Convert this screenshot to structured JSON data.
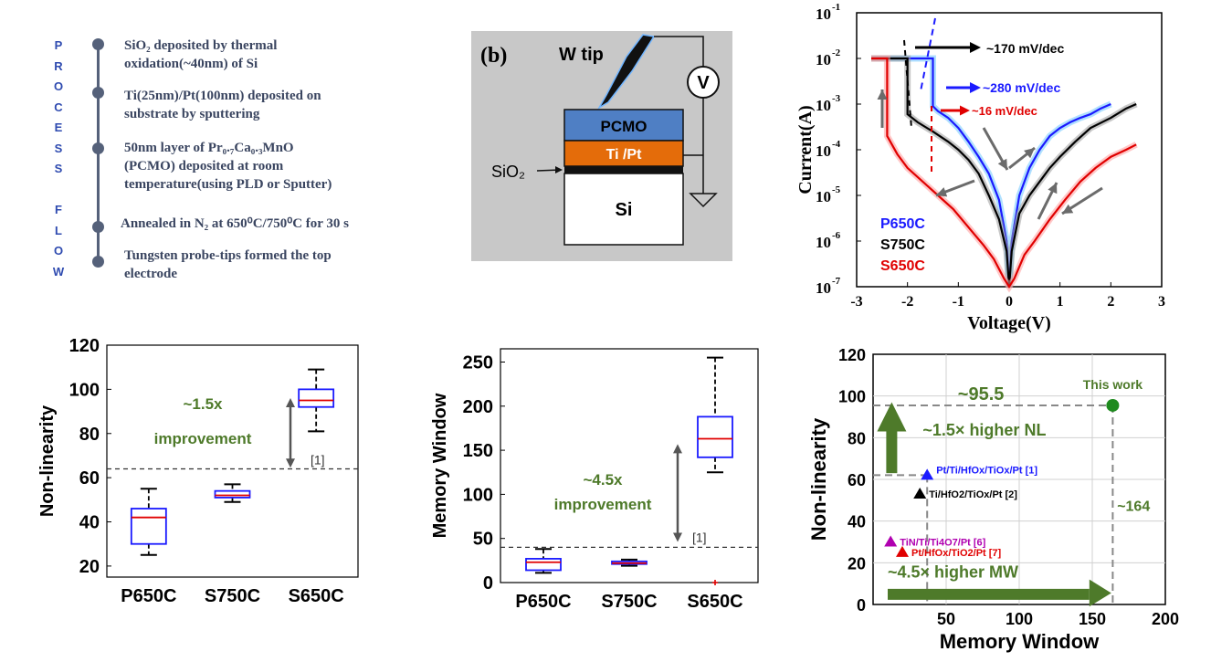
{
  "process_flow": {
    "label_letters": [
      "P",
      "R",
      "O",
      "C",
      "E",
      "S",
      "S",
      "",
      "F",
      "L",
      "O",
      "W"
    ],
    "steps": [
      {
        "lines": [
          "SiO₂ deposited by thermal",
          "oxidation(~40nm) of Si"
        ]
      },
      {
        "lines": [
          "Ti(25nm)/Pt(100nm) deposited on",
          "substrate by sputtering"
        ]
      },
      {
        "lines": [
          "50nm layer of Pr₀.₇Ca₀.₃MnO",
          "(PCMO) deposited at room",
          "temperature(using PLD or Sputter)"
        ]
      },
      {
        "lines": [
          "Annealed in N₂ at 650⁰C/750⁰C for 30 s"
        ]
      },
      {
        "lines": [
          "Tungsten probe-tips formed the top",
          "electrode"
        ]
      }
    ]
  },
  "device_schematic": {
    "panel_label": "(b)",
    "tip_label": "W tip",
    "meter_label": "V",
    "layers": [
      "PCMO",
      "Ti /Pt",
      "Si"
    ],
    "oxide_label": "SiO₂",
    "colors": {
      "background": "#c8c8c8",
      "pcmo": "#4f7fc4",
      "tipt": "#e46c0a",
      "oxide": "#111111",
      "si": "#ffffff"
    }
  },
  "chart_data": [
    {
      "id": "iv",
      "type": "line",
      "xlabel": "Voltage(V)",
      "ylabel": "Current(A)",
      "xlim": [
        -3,
        3
      ],
      "ylim_log10": [
        -7,
        -1
      ],
      "y_scale": "log",
      "x_ticks": [
        "-3",
        "-2",
        "-1",
        "0",
        "1",
        "2",
        "3"
      ],
      "y_ticks": [
        "10",
        "10",
        "10",
        "10",
        "10",
        "10",
        "10"
      ],
      "y_tick_exponents": [
        "-7",
        "-6",
        "-5",
        "-4",
        "-3",
        "-2",
        "-1"
      ],
      "series": [
        {
          "name": "P650C",
          "color": "#1a1aff",
          "x": [
            -1.5,
            -1.5,
            -1.4,
            -1.2,
            -1.0,
            -0.8,
            -0.6,
            -0.4,
            -0.2,
            -0.05,
            0,
            0.05,
            0.2,
            0.4,
            0.6,
            0.8,
            1.0,
            1.2,
            1.4,
            1.6,
            1.8,
            2.0
          ],
          "y": [
            0.01,
            0.0009,
            0.0007,
            0.0005,
            0.0003,
            0.00015,
            7e-05,
            3e-05,
            8e-06,
            1e-06,
            1e-07,
            1e-06,
            1e-05,
            4e-05,
            0.0001,
            0.0002,
            0.0003,
            0.0004,
            0.0005,
            0.0006,
            0.0008,
            0.001
          ]
        },
        {
          "name": "S750C",
          "color": "#000000",
          "x": [
            -2.0,
            -2.0,
            -1.8,
            -1.5,
            -1.2,
            -1.0,
            -0.8,
            -0.6,
            -0.4,
            -0.2,
            -0.05,
            0,
            0.05,
            0.2,
            0.4,
            0.6,
            0.8,
            1.0,
            1.3,
            1.6,
            2.0,
            2.3,
            2.5
          ],
          "y": [
            0.01,
            0.0006,
            0.0004,
            0.00025,
            0.00015,
            0.0001,
            6e-05,
            3e-05,
            1e-05,
            3e-06,
            6e-07,
            1e-07,
            6e-07,
            4e-06,
            1e-05,
            2e-05,
            4e-05,
            7e-05,
            0.00015,
            0.0003,
            0.0005,
            0.0008,
            0.001
          ]
        },
        {
          "name": "S650C",
          "color": "#e00000",
          "x": [
            -2.4,
            -2.4,
            -2.2,
            -2.0,
            -1.7,
            -1.4,
            -1.1,
            -0.8,
            -0.5,
            -0.3,
            -0.1,
            0,
            0.1,
            0.3,
            0.5,
            0.8,
            1.1,
            1.4,
            1.7,
            2.0,
            2.3,
            2.5
          ],
          "y": [
            0.01,
            0.0002,
            8e-05,
            4e-05,
            2e-05,
            1e-05,
            5e-06,
            2e-06,
            8e-07,
            4e-07,
            1.5e-07,
            1e-07,
            1.5e-07,
            5e-07,
            1e-06,
            3e-06,
            8e-06,
            2e-05,
            4e-05,
            7e-05,
            0.0001,
            0.00013
          ]
        }
      ],
      "legend": [
        "P650C",
        "S750C",
        "S650C"
      ],
      "legend_placement": "bottom-left",
      "annotations": [
        "~170 mV/dec",
        "~280 mV/dec",
        "~16 mV/dec"
      ]
    },
    {
      "id": "nl_box",
      "type": "box",
      "ylabel": "Non-linearity",
      "xlabel": "",
      "categories": [
        "P650C",
        "S750C",
        "S650C"
      ],
      "ylim": [
        15,
        120
      ],
      "y_ticks": [
        "20",
        "40",
        "60",
        "80",
        "100",
        "120"
      ],
      "boxes": [
        {
          "whisker_low": 25,
          "q1": 30,
          "median": 42,
          "q3": 46,
          "whisker_high": 55
        },
        {
          "whisker_low": 49,
          "q1": 51,
          "median": 52,
          "q3": 54,
          "whisker_high": 57
        },
        {
          "whisker_low": 81,
          "q1": 92,
          "median": 95,
          "q3": 100,
          "whisker_high": 109
        }
      ],
      "reference_line": 64,
      "reference_label": "[1]",
      "annotation_lines": [
        "~1.5x",
        "improvement"
      ]
    },
    {
      "id": "mw_box",
      "type": "box",
      "ylabel": "Memory Window",
      "xlabel": "",
      "categories": [
        "P650C",
        "S750C",
        "S650C"
      ],
      "ylim": [
        0,
        265
      ],
      "y_ticks": [
        "0",
        "50",
        "100",
        "150",
        "200",
        "250"
      ],
      "boxes": [
        {
          "whisker_low": 11,
          "q1": 14,
          "median": 23,
          "q3": 27,
          "whisker_high": 38
        },
        {
          "whisker_low": 19,
          "q1": 21,
          "median": 22,
          "q3": 24,
          "whisker_high": 26
        },
        {
          "whisker_low": 125,
          "q1": 142,
          "median": 163,
          "q3": 188,
          "whisker_high": 255
        }
      ],
      "outliers": [
        {
          "category": "S650C",
          "value": 0
        }
      ],
      "reference_line": 40,
      "reference_label": "[1]",
      "annotation_lines": [
        "~4.5x",
        "improvement"
      ]
    },
    {
      "id": "benchmark",
      "type": "scatter",
      "xlabel": "Memory Window",
      "ylabel": "Non-linearity",
      "xlim": [
        0,
        200
      ],
      "ylim": [
        0,
        120
      ],
      "x_ticks": [
        "50",
        "100",
        "150",
        "200"
      ],
      "y_ticks": [
        "0",
        "20",
        "40",
        "60",
        "80",
        "100",
        "120"
      ],
      "grid": true,
      "points": [
        {
          "label": "This work",
          "x": 164,
          "y": 95.5,
          "marker": "circle",
          "color": "#1e8a1e"
        },
        {
          "label": "Pt/Ti/HfOx/TiOx/Pt [1]",
          "x": 37,
          "y": 62,
          "marker": "triangle",
          "color": "#1a1aff"
        },
        {
          "label": "Ti/HfO2/TiOx/Pt [2]",
          "x": 32,
          "y": 53,
          "marker": "triangle",
          "color": "#000000"
        },
        {
          "label": "TiN/Ti/Ti4O7/Pt [6]",
          "x": 12,
          "y": 30,
          "marker": "triangle",
          "color": "#b000b0"
        },
        {
          "label": "Pt/HfOx/TiO2/Pt [7]",
          "x": 20,
          "y": 25,
          "marker": "triangle",
          "color": "#e00000"
        }
      ],
      "annotations": {
        "nl_value": "~95.5",
        "mw_value": "~164",
        "nl_gain": "~1.5× higher NL",
        "mw_gain": "~4.5× higher MW"
      }
    }
  ]
}
